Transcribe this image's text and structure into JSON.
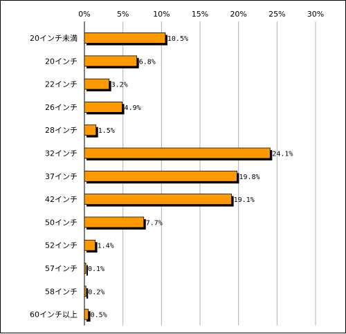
{
  "chart_data": {
    "type": "bar",
    "orientation": "horizontal",
    "categories": [
      "20インチ未満",
      "20インチ",
      "22インチ",
      "26インチ",
      "28インチ",
      "32インチ",
      "37インチ",
      "42インチ",
      "50インチ",
      "52インチ",
      "57インチ",
      "58インチ",
      "60インチ以上"
    ],
    "values": [
      10.5,
      6.8,
      3.2,
      4.9,
      1.5,
      24.1,
      19.8,
      19.1,
      7.7,
      1.4,
      0.1,
      0.2,
      0.5
    ],
    "data_labels": [
      "10.5%",
      "6.8%",
      "3.2%",
      "4.9%",
      "1.5%",
      "24.1%",
      "19.8%",
      "19.1%",
      "7.7%",
      "1.4%",
      "0.1%",
      "0.2%",
      "0.5%"
    ],
    "x_ticks": [
      0,
      5,
      10,
      15,
      20,
      25,
      30
    ],
    "x_tick_labels": [
      "0%",
      "5%",
      "10%",
      "15%",
      "20%",
      "25%",
      "30%"
    ],
    "xlim": [
      0,
      30
    ],
    "x_axis_position": "top",
    "grid": true,
    "legend": "none",
    "bar_color": "#ff9900",
    "bar_shadow_color": "#000000"
  }
}
